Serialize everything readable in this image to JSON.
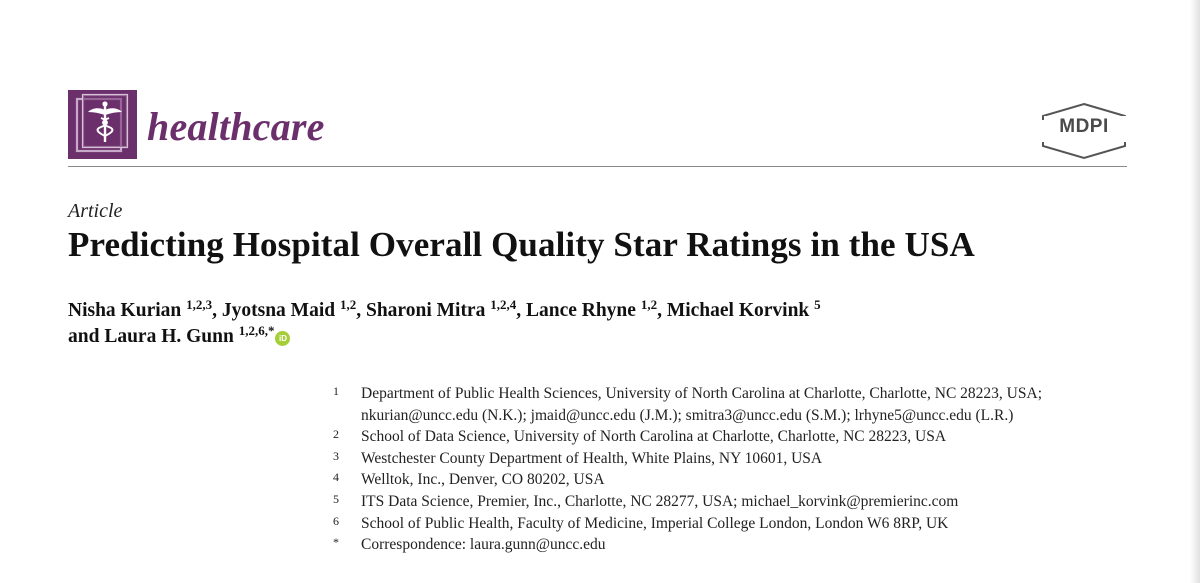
{
  "header": {
    "journal_name": "healthcare",
    "journal_logo_icon": "caduceus-icon",
    "publisher_name": "MDPI",
    "brand_color": "#6b2f6b"
  },
  "article": {
    "type": "Article",
    "title": "Predicting Hospital Overall Quality Star Ratings in the USA"
  },
  "authors": [
    {
      "name": "Nisha Kurian",
      "affiliations": "1,2,3",
      "separator": ","
    },
    {
      "name": "Jyotsna Maid",
      "affiliations": "1,2",
      "separator": ","
    },
    {
      "name": "Sharoni Mitra",
      "affiliations": "1,2,4",
      "separator": ","
    },
    {
      "name": "Lance Rhyne",
      "affiliations": "1,2",
      "separator": ","
    },
    {
      "name": "Michael Korvink",
      "affiliations": "5",
      "separator": ""
    },
    {
      "prefix": "and",
      "name": "Laura H. Gunn",
      "affiliations": "1,2,6,*",
      "separator": "",
      "orcid": "iD"
    }
  ],
  "affiliations": [
    {
      "num": "1",
      "lines": [
        "Department of Public Health Sciences, University of North Carolina at Charlotte, Charlotte, NC 28223, USA;",
        "nkurian@uncc.edu (N.K.); jmaid@uncc.edu (J.M.); smitra3@uncc.edu (S.M.); lrhyne5@uncc.edu (L.R.)"
      ]
    },
    {
      "num": "2",
      "lines": [
        "School of Data Science, University of North Carolina at Charlotte, Charlotte, NC 28223, USA"
      ]
    },
    {
      "num": "3",
      "lines": [
        "Westchester County Department of Health, White Plains, NY 10601, USA"
      ]
    },
    {
      "num": "4",
      "lines": [
        "Welltok, Inc., Denver, CO 80202, USA"
      ]
    },
    {
      "num": "5",
      "lines": [
        "ITS Data Science, Premier, Inc., Charlotte, NC 28277, USA; michael_korvink@premierinc.com"
      ]
    },
    {
      "num": "6",
      "lines": [
        "School of Public Health, Faculty of Medicine, Imperial College London, London W6 8RP, UK"
      ]
    },
    {
      "num": "*",
      "lines": [
        "Correspondence: laura.gunn@uncc.edu"
      ]
    }
  ]
}
